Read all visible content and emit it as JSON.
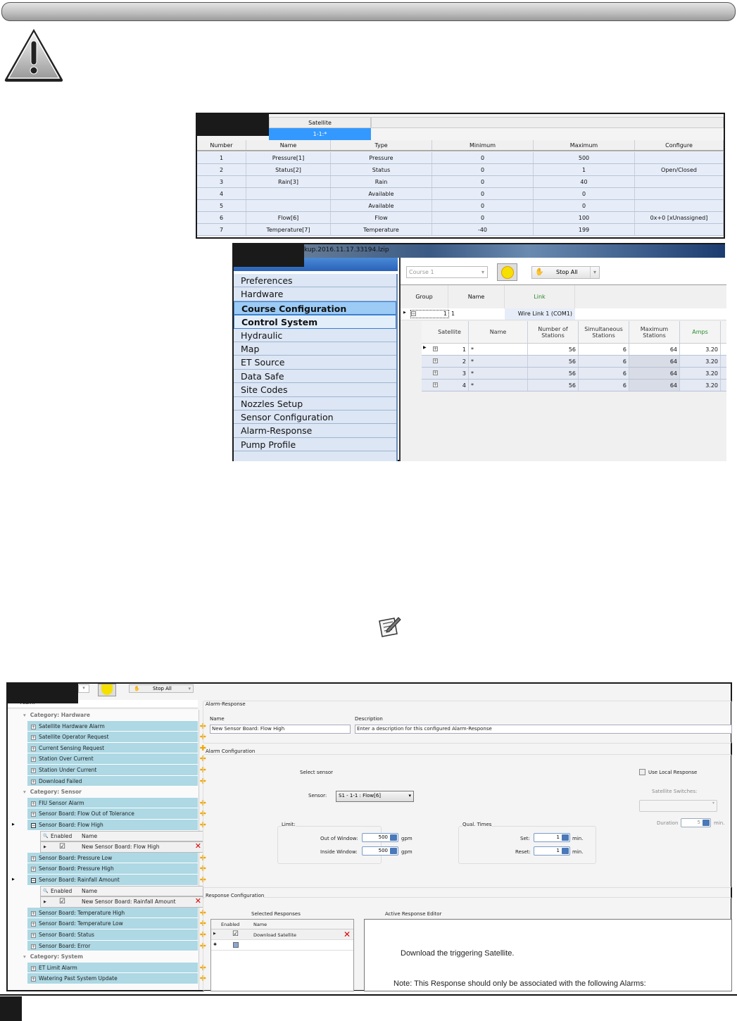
{
  "sensor_config": {
    "satellite_header": "Satellite",
    "satellite_selected": "1-1:*",
    "columns": [
      "Number",
      "Name",
      "Type",
      "Minimum",
      "Maximum",
      "Configure"
    ],
    "rows": [
      [
        "1",
        "Pressure[1]",
        "Pressure",
        "0",
        "500",
        ""
      ],
      [
        "2",
        "Status[2]",
        "Status",
        "0",
        "1",
        "Open/Closed"
      ],
      [
        "3",
        "Rain[3]",
        "Rain",
        "0",
        "40",
        ""
      ],
      [
        "4",
        "",
        "Available",
        "0",
        "0",
        ""
      ],
      [
        "5",
        "",
        "Available",
        "0",
        "0",
        ""
      ],
      [
        "6",
        "Flow[6]",
        "Flow",
        "0",
        "100",
        "0x+0 [xUnassigned]"
      ],
      [
        "7",
        "Temperature[7]",
        "Temperature",
        "-40",
        "199",
        ""
      ]
    ]
  },
  "course_config": {
    "title_fragment": "kup.2016.11.17.33194.lzip",
    "menu": [
      "Preferences",
      "Hardware",
      "Course Configuration",
      "Control System",
      "Hydraulic",
      "Map",
      "ET Source",
      "Data Safe",
      "Site Codes",
      "Nozzles Setup",
      "Sensor Configuration",
      "Alarm-Response",
      "Pump Profile"
    ],
    "course_dropdown": "Course 1",
    "stop_all": "Stop All",
    "group_columns": [
      "Group",
      "Name",
      "Link"
    ],
    "group_row": [
      "1",
      "1",
      "Wire Link 1 (COM1)"
    ],
    "sat_columns": [
      "Satellite",
      "Name",
      "Number of Stations",
      "Simultaneous Stations",
      "Maximum Stations",
      "Amps"
    ],
    "sat_rows": [
      [
        "1",
        "*",
        "56",
        "6",
        "64",
        "3.20"
      ],
      [
        "2",
        "*",
        "56",
        "6",
        "64",
        "3.20"
      ],
      [
        "3",
        "*",
        "56",
        "6",
        "64",
        "3.20"
      ],
      [
        "4",
        "*",
        "56",
        "6",
        "64",
        "3.20"
      ]
    ],
    "link_color": "#2a8a2a"
  },
  "alarm_response": {
    "stop_all": "Stop All",
    "tree_header": "Alarm",
    "tree": [
      {
        "type": "cat",
        "label": "Category: Hardware"
      },
      {
        "type": "item",
        "label": "Satellite Hardware Alarm"
      },
      {
        "type": "item",
        "label": "Satellite Operator Request"
      },
      {
        "type": "item",
        "label": "Current Sensing Request"
      },
      {
        "type": "item",
        "label": "Station Over Current"
      },
      {
        "type": "item",
        "label": "Station Under Current"
      },
      {
        "type": "item",
        "label": "Download Failed"
      },
      {
        "type": "cat",
        "label": "Category: Sensor"
      },
      {
        "type": "item",
        "label": "FIU Sensor Alarm"
      },
      {
        "type": "item",
        "label": "Sensor Board: Flow Out of Tolerance"
      },
      {
        "type": "open",
        "label": "Sensor Board: Flow High"
      },
      {
        "type": "subhead",
        "label": "Enabled",
        "label2": "Name"
      },
      {
        "type": "subrow",
        "label": "New Sensor Board: Flow High"
      },
      {
        "type": "item",
        "label": "Sensor Board: Pressure Low"
      },
      {
        "type": "item",
        "label": "Sensor Board: Pressure High"
      },
      {
        "type": "open",
        "label": "Sensor Board: Rainfall Amount"
      },
      {
        "type": "subhead",
        "label": "Enabled",
        "label2": "Name"
      },
      {
        "type": "subrow",
        "label": "New Sensor Board: Rainfall Amount"
      },
      {
        "type": "item",
        "label": "Sensor Board: Temperature High"
      },
      {
        "type": "item",
        "label": "Sensor Board: Temperature Low"
      },
      {
        "type": "item",
        "label": "Sensor Board: Status"
      },
      {
        "type": "item",
        "label": "Sensor Board: Error"
      },
      {
        "type": "cat",
        "label": "Category: System"
      },
      {
        "type": "item",
        "label": "ET Limit Alarm"
      },
      {
        "type": "item",
        "label": "Watering Past System Update"
      }
    ],
    "form": {
      "section_title": "Alarm-Response",
      "name_label": "Name",
      "name_value": "New Sensor Board: Flow High",
      "desc_label": "Description",
      "desc_value": "Enter a description for this configured Alarm-Response",
      "alarm_config_title": "Alarm Configuration",
      "select_sensor": "Select sensor",
      "sensor_label": "Sensor:",
      "sensor_value": "S1 - 1-1 : Flow[6]",
      "use_local": "Use Local Response",
      "sat_switches": "Satellite Switches:",
      "duration_label": "Duration",
      "duration_value": "5",
      "duration_unit": "min.",
      "limit_title": "Limit:",
      "out_window_label": "Out of Window:",
      "out_window_value": "500",
      "in_window_label": "Inside Window:",
      "in_window_value": "500",
      "gpm": "gpm",
      "qual_title": "Qual. Times",
      "set_label": "Set:",
      "set_value": "1",
      "reset_label": "Reset:",
      "reset_value": "1",
      "min": "min.",
      "response_title": "Response Configuration",
      "selected_responses": "Selected Responses",
      "active_editor": "Active Response Editor",
      "resp_columns": [
        "Enabled",
        "Name"
      ],
      "resp_row": "Download Satellite",
      "editor_text": "Download the triggering Satellite.",
      "editor_note": "Note: This Response should only be associated with the following Alarms:"
    }
  }
}
